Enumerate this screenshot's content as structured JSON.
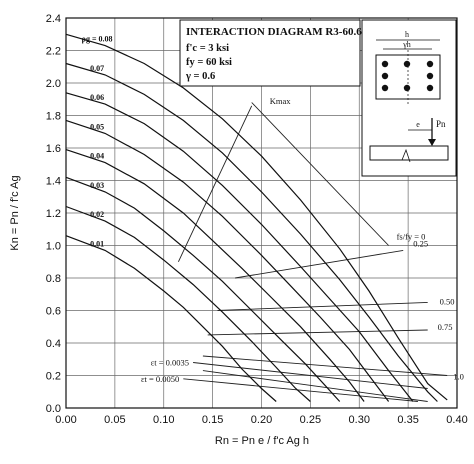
{
  "chart_data": {
    "type": "line",
    "title": "INTERACTION DIAGRAM R3-60.6",
    "params": [
      "f'c = 3 ksi",
      "fy = 60 ksi",
      "γ = 0.6"
    ],
    "xlabel": "Rn = Pn e / f'c Ag h",
    "ylabel": "Kn = Pn / f'c Ag",
    "xlim": [
      0,
      0.4
    ],
    "ylim": [
      0,
      2.4
    ],
    "xticks": [
      "0.00",
      "0.05",
      "0.10",
      "0.15",
      "0.20",
      "0.25",
      "0.30",
      "0.35",
      "0.40"
    ],
    "yticks": [
      "0.0",
      "0.2",
      "0.4",
      "0.6",
      "0.8",
      "1.0",
      "1.2",
      "1.4",
      "1.6",
      "1.8",
      "2.0",
      "2.2",
      "2.4"
    ],
    "grid": true,
    "series": [
      {
        "name": "ρg = 0.08",
        "label": "ρg = 0.08",
        "x": [
          0,
          0.04,
          0.08,
          0.12,
          0.16,
          0.2,
          0.24,
          0.28,
          0.31,
          0.34,
          0.37,
          0.39
        ],
        "y": [
          2.3,
          2.23,
          2.12,
          1.97,
          1.78,
          1.55,
          1.28,
          0.98,
          0.72,
          0.43,
          0.15,
          0.05
        ]
      },
      {
        "name": "ρg = 0.07",
        "label": "0.07",
        "x": [
          0,
          0.04,
          0.08,
          0.12,
          0.16,
          0.2,
          0.24,
          0.28,
          0.31,
          0.34,
          0.37,
          0.38
        ],
        "y": [
          2.12,
          2.05,
          1.93,
          1.77,
          1.57,
          1.33,
          1.07,
          0.79,
          0.56,
          0.32,
          0.1,
          0.04
        ]
      },
      {
        "name": "ρg = 0.06",
        "label": "0.06",
        "x": [
          0,
          0.04,
          0.08,
          0.12,
          0.16,
          0.2,
          0.24,
          0.27,
          0.3,
          0.33,
          0.355
        ],
        "y": [
          1.94,
          1.87,
          1.75,
          1.58,
          1.37,
          1.13,
          0.87,
          0.67,
          0.47,
          0.23,
          0.04
        ]
      },
      {
        "name": "ρg = 0.05",
        "label": "0.05",
        "x": [
          0,
          0.04,
          0.08,
          0.12,
          0.16,
          0.2,
          0.23,
          0.26,
          0.29,
          0.31,
          0.33
        ],
        "y": [
          1.77,
          1.69,
          1.56,
          1.39,
          1.18,
          0.94,
          0.75,
          0.56,
          0.36,
          0.2,
          0.04
        ]
      },
      {
        "name": "ρg = 0.04",
        "label": "0.04",
        "x": [
          0,
          0.04,
          0.08,
          0.12,
          0.15,
          0.18,
          0.21,
          0.24,
          0.27,
          0.29,
          0.305
        ],
        "y": [
          1.59,
          1.51,
          1.38,
          1.2,
          1.03,
          0.86,
          0.68,
          0.5,
          0.3,
          0.16,
          0.04
        ]
      },
      {
        "name": "ρg = 0.03",
        "label": "0.03",
        "x": [
          0,
          0.04,
          0.07,
          0.1,
          0.13,
          0.16,
          0.19,
          0.22,
          0.245,
          0.265,
          0.28
        ],
        "y": [
          1.42,
          1.33,
          1.23,
          1.09,
          0.94,
          0.78,
          0.6,
          0.42,
          0.27,
          0.14,
          0.04
        ]
      },
      {
        "name": "ρg = 0.02",
        "label": "0.02",
        "x": [
          0,
          0.04,
          0.07,
          0.1,
          0.13,
          0.16,
          0.19,
          0.215,
          0.235,
          0.25
        ],
        "y": [
          1.24,
          1.15,
          1.05,
          0.91,
          0.76,
          0.59,
          0.41,
          0.25,
          0.12,
          0.04
        ]
      },
      {
        "name": "ρg = 0.01",
        "label": "0.01",
        "x": [
          0,
          0.04,
          0.07,
          0.1,
          0.12,
          0.14,
          0.16,
          0.18,
          0.2,
          0.215
        ],
        "y": [
          1.06,
          0.97,
          0.86,
          0.72,
          0.62,
          0.5,
          0.38,
          0.24,
          0.12,
          0.04
        ]
      }
    ],
    "fs_lines": [
      {
        "label": "fs/fy = 0",
        "x": [
          0.19,
          0.33
        ],
        "y": [
          1.88,
          1.0
        ]
      },
      {
        "label": "0.25",
        "x": [
          0.173,
          0.345
        ],
        "y": [
          0.8,
          0.97
        ]
      },
      {
        "label": "0.50",
        "x": [
          0.155,
          0.37
        ],
        "y": [
          0.6,
          0.65
        ]
      },
      {
        "label": "0.75",
        "x": [
          0.145,
          0.37
        ],
        "y": [
          0.45,
          0.48
        ]
      },
      {
        "label": "1.0",
        "x": [
          0.14,
          0.39
        ],
        "y": [
          0.32,
          0.2
        ]
      },
      {
        "label": "",
        "x": [
          0.14,
          0.37
        ],
        "y": [
          0.23,
          0.04
        ]
      }
    ],
    "strain_lines": [
      {
        "label": "εt = 0.0035",
        "x": [
          0.13,
          0.37
        ],
        "y": [
          0.28,
          0.12
        ]
      },
      {
        "label": "εt = 0.0050",
        "x": [
          0.12,
          0.36
        ],
        "y": [
          0.18,
          0.04
        ]
      }
    ],
    "kmax_line": {
      "label": "Kmax",
      "x": [
        0.115,
        0.19
      ],
      "y": [
        0.9,
        1.86
      ]
    },
    "inset": {
      "labels": [
        "h",
        "γh",
        "e",
        "Pn"
      ]
    }
  }
}
